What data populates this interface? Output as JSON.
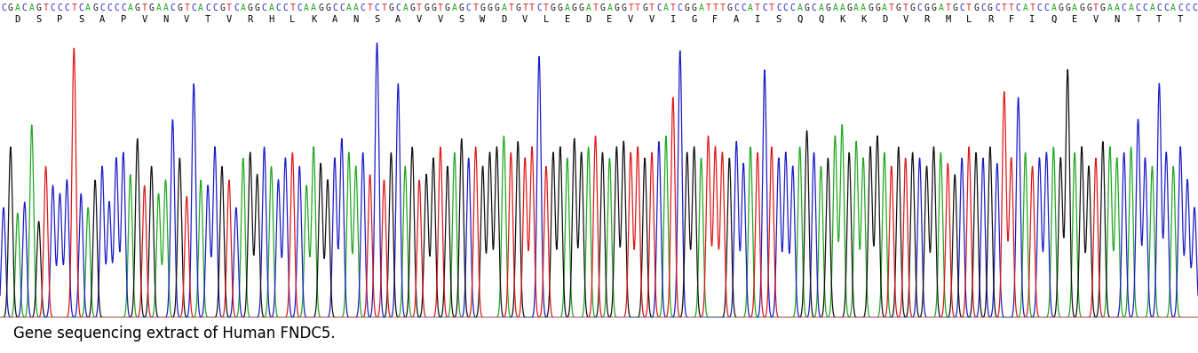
{
  "chart_data": {
    "type": "chromatogram",
    "sequence": "CGACAGTCCCTCAGCCCCAGTGAACGTCACCGTCAGGCACCTCAAGGCCAACTCTGCAGTGGTGAGCTGGGATGTTCTGGAGGATGAGGTTGTCATCGGATTTGCCATCTCCCAGCAGAAGAAGGATGTGCGGATGCTGCGCTTCATCCAGGAGGTGAACACCACCACCC",
    "translation": "DSPSAPVNVTVRHLKANSAVVSWDVLEDEVVIGFAISQQKKDVRMLRFIQEVNTTT",
    "caption": "Gene sequencing extract of Human FNDC5.",
    "colors": {
      "A": "#1fa81f",
      "C": "#1c1cc8",
      "G": "#111111",
      "T": "#e01818"
    },
    "ylim": [
      0,
      100
    ],
    "tick_labels": false,
    "peak_heights": [
      40,
      62,
      38,
      42,
      70,
      35,
      55,
      48,
      45,
      50,
      98,
      45,
      40,
      50,
      55,
      42,
      58,
      60,
      52,
      65,
      48,
      55,
      45,
      50,
      72,
      58,
      44,
      85,
      50,
      48,
      62,
      55,
      50,
      40,
      58,
      60,
      52,
      62,
      55,
      50,
      58,
      60,
      55,
      48,
      62,
      56,
      50,
      58,
      65,
      60,
      55,
      60,
      52,
      100,
      50,
      60,
      85,
      55,
      62,
      50,
      52,
      58,
      62,
      55,
      60,
      65,
      58,
      62,
      55,
      60,
      62,
      66,
      60,
      64,
      58,
      62,
      95,
      55,
      60,
      62,
      58,
      65,
      60,
      62,
      66,
      60,
      58,
      62,
      64,
      60,
      62,
      58,
      60,
      64,
      66,
      80,
      97,
      60,
      62,
      58,
      66,
      62,
      60,
      58,
      64,
      56,
      62,
      60,
      90,
      62,
      58,
      60,
      55,
      62,
      68,
      60,
      55,
      58,
      66,
      70,
      60,
      64,
      58,
      62,
      66,
      60,
      55,
      62,
      58,
      60,
      58,
      55,
      62,
      60,
      56,
      52,
      58,
      62,
      60,
      58,
      62,
      56,
      82,
      58,
      80,
      60,
      55,
      58,
      60,
      62,
      58,
      90,
      60,
      62,
      55,
      58,
      64,
      62,
      58,
      60,
      62,
      72,
      58,
      55,
      85,
      60,
      55,
      62,
      50,
      40
    ]
  }
}
